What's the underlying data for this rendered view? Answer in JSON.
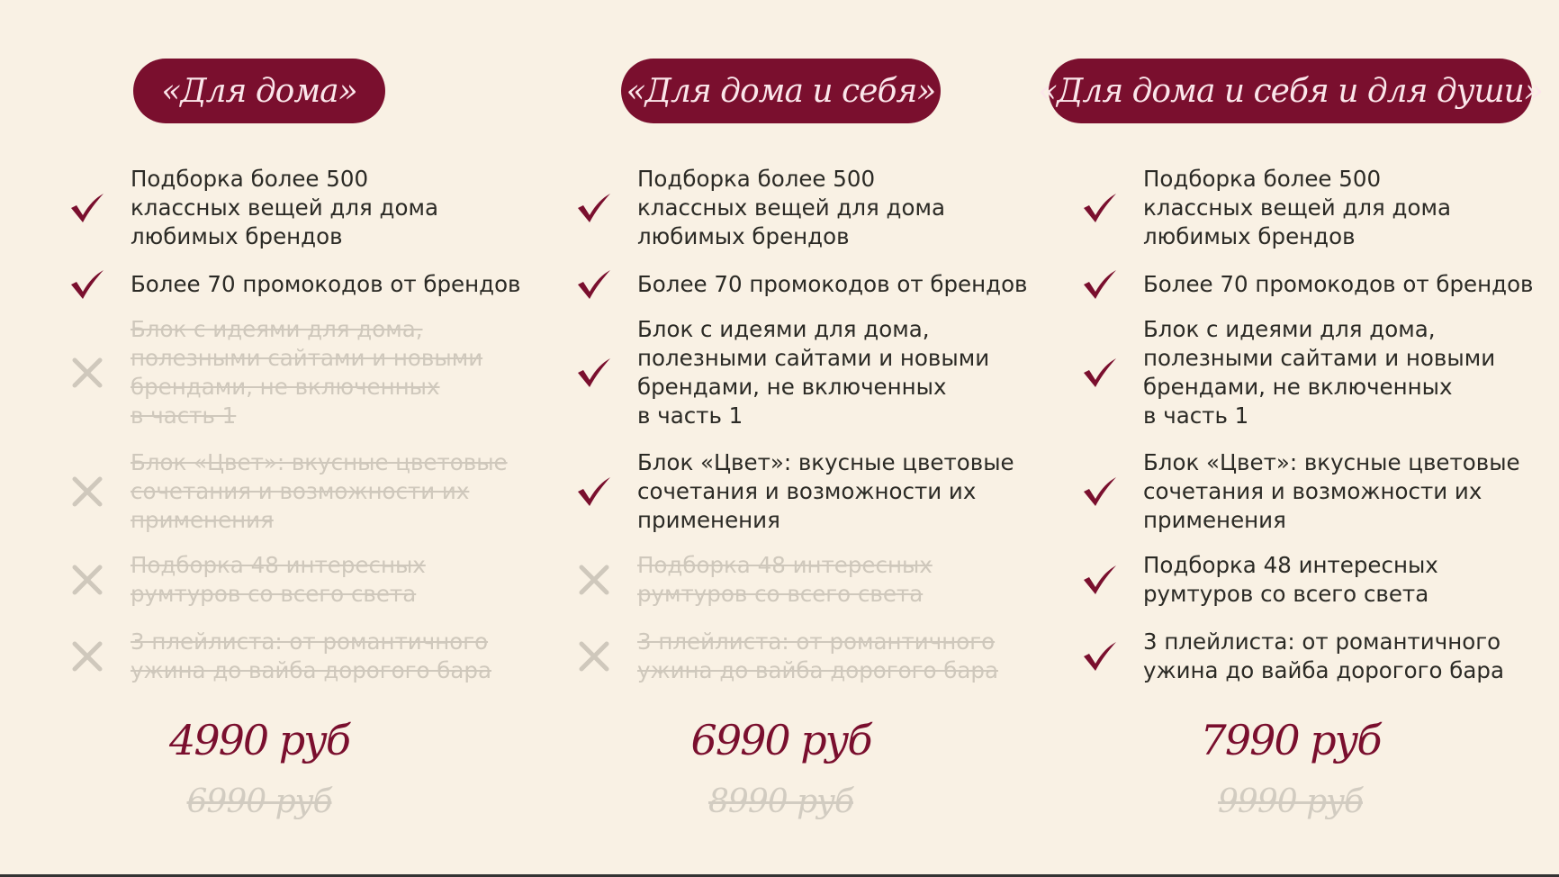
{
  "colors": {
    "accent": "#7a0f2e",
    "background": "#f9f1e4",
    "text": "#2b2a25",
    "disabled": "#cfc8bc"
  },
  "plans": [
    {
      "title": "«Для дома»",
      "price": "4990 руб",
      "old_price": "6990 руб",
      "features": [
        {
          "text": "Подборка более 500\nклассных вещей для дома\nлюбимых брендов",
          "included": true,
          "icon": "check-icon"
        },
        {
          "text": "Более 70 промокодов от брендов",
          "included": true,
          "icon": "check-icon"
        },
        {
          "text": "Блок с идеями для дома,\nполезными сайтами и новыми\nбрендами, не включенных\nв часть 1",
          "included": false,
          "icon": "cross-icon"
        },
        {
          "text": "Блок «Цвет»: вкусные цветовые\nсочетания и возможности их\nприменения",
          "included": false,
          "icon": "cross-icon"
        },
        {
          "text": "Подборка 48 интересных\nрумтуров со всего света",
          "included": false,
          "icon": "cross-icon"
        },
        {
          "text": "3 плейлиста: от романтичного\nужина до вайба дорогого бара",
          "included": false,
          "icon": "cross-icon"
        }
      ]
    },
    {
      "title": "«Для дома и себя»",
      "price": "6990 руб",
      "old_price": "8990 руб",
      "features": [
        {
          "text": "Подборка более 500\nклассных вещей для дома\nлюбимых брендов",
          "included": true,
          "icon": "check-icon"
        },
        {
          "text": "Более 70 промокодов от брендов",
          "included": true,
          "icon": "check-icon"
        },
        {
          "text": "Блок с идеями для дома,\nполезными сайтами и новыми\nбрендами, не включенных\nв часть 1",
          "included": true,
          "icon": "check-icon"
        },
        {
          "text": "Блок «Цвет»: вкусные цветовые\nсочетания и возможности их\nприменения",
          "included": true,
          "icon": "check-icon"
        },
        {
          "text": "Подборка 48 интересных\nрумтуров со всего света",
          "included": false,
          "icon": "cross-icon"
        },
        {
          "text": "3 плейлиста: от романтичного\nужина до вайба дорогого бара",
          "included": false,
          "icon": "cross-icon"
        }
      ]
    },
    {
      "title": "«Для дома и себя и для души»",
      "price": "7990 руб",
      "old_price": "9990 руб",
      "features": [
        {
          "text": "Подборка более 500\nклассных вещей для дома\nлюбимых брендов",
          "included": true,
          "icon": "check-icon"
        },
        {
          "text": "Более 70 промокодов от брендов",
          "included": true,
          "icon": "check-icon"
        },
        {
          "text": "Блок с идеями для дома,\nполезными сайтами и новыми\nбрендами, не включенных\nв часть 1",
          "included": true,
          "icon": "check-icon"
        },
        {
          "text": "Блок «Цвет»: вкусные цветовые\nсочетания и возможности их\nприменения",
          "included": true,
          "icon": "check-icon"
        },
        {
          "text": "Подборка 48 интересных\nрумтуров со всего света",
          "included": true,
          "icon": "check-icon"
        },
        {
          "text": "3 плейлиста: от романтичного\nужина до вайба дорогого бара",
          "included": true,
          "icon": "check-icon"
        }
      ]
    }
  ]
}
